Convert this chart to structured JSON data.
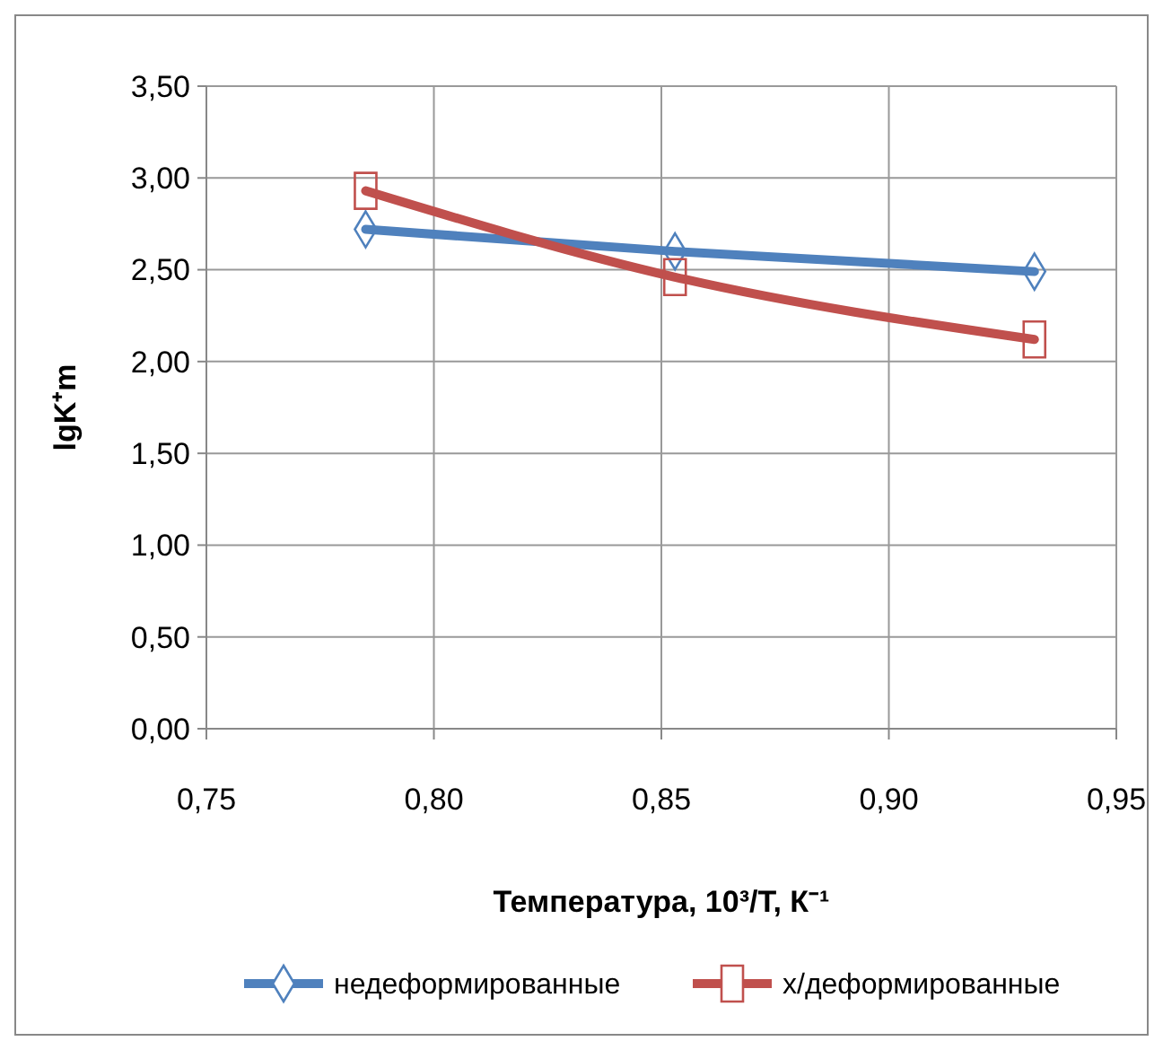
{
  "chart_data": {
    "type": "line",
    "xlabel": "Температура, 10³/T, К⁻¹",
    "ylabel": "lgK⁺m",
    "xlim": [
      0.75,
      0.95
    ],
    "xticks": [
      {
        "value": 0.75,
        "label": "0,75"
      },
      {
        "value": 0.8,
        "label": "0,80"
      },
      {
        "value": 0.85,
        "label": "0,85"
      },
      {
        "value": 0.9,
        "label": "0,90"
      },
      {
        "value": 0.95,
        "label": "0,95"
      }
    ],
    "ylim": [
      0,
      3.5
    ],
    "yticks": [
      {
        "value": 0,
        "label": "0,00"
      },
      {
        "value": 0.5,
        "label": "0,50"
      },
      {
        "value": 1,
        "label": "1,00"
      },
      {
        "value": 1.5,
        "label": "1,50"
      },
      {
        "value": 2,
        "label": "2,00"
      },
      {
        "value": 2.5,
        "label": "2,50"
      },
      {
        "value": 3,
        "label": "3,00"
      },
      {
        "value": 3.5,
        "label": "3,50"
      }
    ],
    "x": [
      0.785,
      0.853,
      0.932
    ],
    "grid": true,
    "legend": "bottom",
    "line_style": "solid",
    "series": [
      {
        "name": "недеформированные",
        "color": "#4f81bd",
        "marker": "diamond",
        "values": [
          2.72,
          2.6,
          2.49
        ]
      },
      {
        "name": "х/деформированные",
        "color": "#c0504d",
        "marker": "square",
        "values": [
          2.93,
          2.46,
          2.12
        ]
      }
    ]
  }
}
